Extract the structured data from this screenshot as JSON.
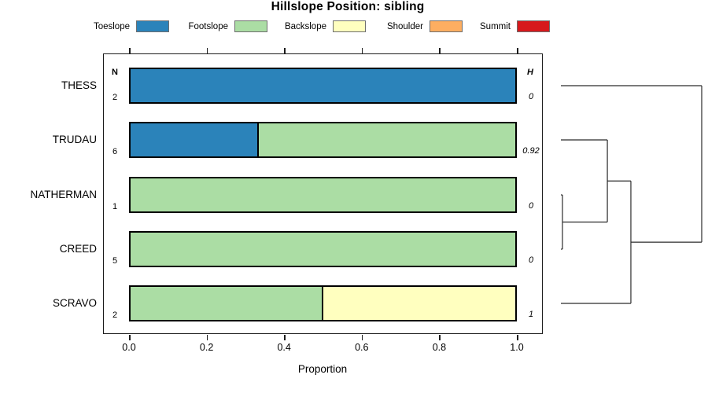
{
  "title": "Hillslope Position: sibling",
  "legend": {
    "items": [
      {
        "label": "Toeslope",
        "color": "#2B83BA"
      },
      {
        "label": "Footslope",
        "color": "#ABDDA4"
      },
      {
        "label": "Backslope",
        "color": "#FFFFBF"
      },
      {
        "label": "Shoulder",
        "color": "#FDAE61"
      },
      {
        "label": "Summit",
        "color": "#D7191C"
      }
    ]
  },
  "columns": {
    "n_header": "N",
    "h_header": "H"
  },
  "rows": [
    {
      "label": "THESS",
      "n": "2",
      "h": "0",
      "segments": [
        {
          "name": "Toeslope",
          "color": "#2B83BA",
          "from": 0,
          "to": 1
        }
      ]
    },
    {
      "label": "TRUDAU",
      "n": "6",
      "h": "0.92",
      "segments": [
        {
          "name": "Toeslope",
          "color": "#2B83BA",
          "from": 0,
          "to": 0.3333
        },
        {
          "name": "Footslope",
          "color": "#ABDDA4",
          "from": 0.3333,
          "to": 1
        }
      ]
    },
    {
      "label": "NATHERMAN",
      "n": "1",
      "h": "0",
      "segments": [
        {
          "name": "Footslope",
          "color": "#ABDDA4",
          "from": 0,
          "to": 1
        }
      ]
    },
    {
      "label": "CREED",
      "n": "5",
      "h": "0",
      "segments": [
        {
          "name": "Footslope",
          "color": "#ABDDA4",
          "from": 0,
          "to": 1
        }
      ]
    },
    {
      "label": "SCRAVO",
      "n": "2",
      "h": "1",
      "segments": [
        {
          "name": "Footslope",
          "color": "#ABDDA4",
          "from": 0,
          "to": 0.5
        },
        {
          "name": "Backslope",
          "color": "#FFFFBF",
          "from": 0.5,
          "to": 1
        }
      ]
    }
  ],
  "x_axis": {
    "tick_labels": [
      "0.0",
      "0.2",
      "0.4",
      "0.6",
      "0.8",
      "1.0"
    ],
    "label": "Proportion"
  },
  "chart_data": {
    "type": "bar",
    "orientation": "horizontal",
    "stacked": true,
    "title": "Hillslope Position: sibling",
    "xlabel": "Proportion",
    "xlim": [
      0,
      1
    ],
    "x_ticks": [
      0.0,
      0.2,
      0.4,
      0.6,
      0.8,
      1.0
    ],
    "grid": false,
    "legend_position": "top",
    "categories": [
      "THESS",
      "TRUDAU",
      "NATHERMAN",
      "CREED",
      "SCRAVO"
    ],
    "series": [
      {
        "name": "Toeslope",
        "color": "#2B83BA",
        "values": [
          1,
          0.3333,
          0,
          0,
          0
        ]
      },
      {
        "name": "Footslope",
        "color": "#ABDDA4",
        "values": [
          0,
          0.6667,
          1,
          1,
          0.5
        ]
      },
      {
        "name": "Backslope",
        "color": "#FFFFBF",
        "values": [
          0,
          0,
          0,
          0,
          0.5
        ]
      },
      {
        "name": "Shoulder",
        "color": "#FDAE61",
        "values": [
          0,
          0,
          0,
          0,
          0
        ]
      },
      {
        "name": "Summit",
        "color": "#D7191C",
        "values": [
          0,
          0,
          0,
          0,
          0
        ]
      }
    ],
    "annotations": {
      "N": [
        2,
        6,
        1,
        5,
        2
      ],
      "H_shannon_entropy": [
        0,
        0.92,
        0,
        0,
        1
      ]
    },
    "dendrogram": {
      "side": "right",
      "heights_normalized": true,
      "leaves": [
        "THESS",
        "TRUDAU",
        "NATHERMAN",
        "CREED",
        "SCRAVO"
      ],
      "merges": [
        {
          "pair": [
            "NATHERMAN",
            "CREED"
          ],
          "height": 0.011
        },
        {
          "pair": [
            "m0",
            "TRUDAU"
          ],
          "height": 0.33
        },
        {
          "pair": [
            "m1",
            "SCRAVO"
          ],
          "height": 0.497
        },
        {
          "pair": [
            "m2",
            "THESS"
          ],
          "height": 1.0
        }
      ]
    }
  }
}
